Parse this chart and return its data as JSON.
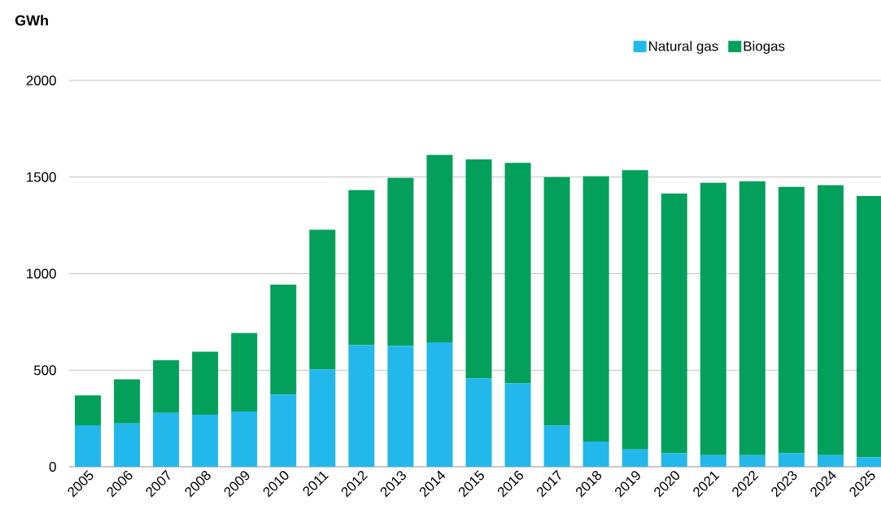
{
  "chart_data": {
    "type": "bar",
    "ylabel": "GWh",
    "stacked": true,
    "categories": [
      "2005",
      "2006",
      "2007",
      "2008",
      "2009",
      "2010",
      "2011",
      "2012",
      "2013",
      "2014",
      "2015",
      "2016",
      "2017",
      "2018",
      "2019",
      "2020",
      "2021",
      "2022",
      "2023",
      "2024",
      "2025"
    ],
    "series": [
      {
        "name": "Natural gas",
        "color": "#22b8eb",
        "values": [
          215,
          224,
          279,
          270,
          286,
          374,
          504,
          629,
          626,
          644,
          458,
          432,
          213,
          131,
          90,
          71,
          60,
          60,
          69,
          60,
          48
        ]
      },
      {
        "name": "Biogas",
        "color": "#03a05c",
        "values": [
          154,
          229,
          273,
          326,
          407,
          569,
          723,
          804,
          870,
          971,
          1134,
          1142,
          1287,
          1373,
          1446,
          1344,
          1411,
          1418,
          1380,
          1398,
          1354
        ]
      }
    ],
    "ylim": [
      0,
      2000
    ],
    "yticks": [
      0,
      500,
      1000,
      1500,
      2000
    ],
    "grid": "y",
    "legend": "top right"
  }
}
